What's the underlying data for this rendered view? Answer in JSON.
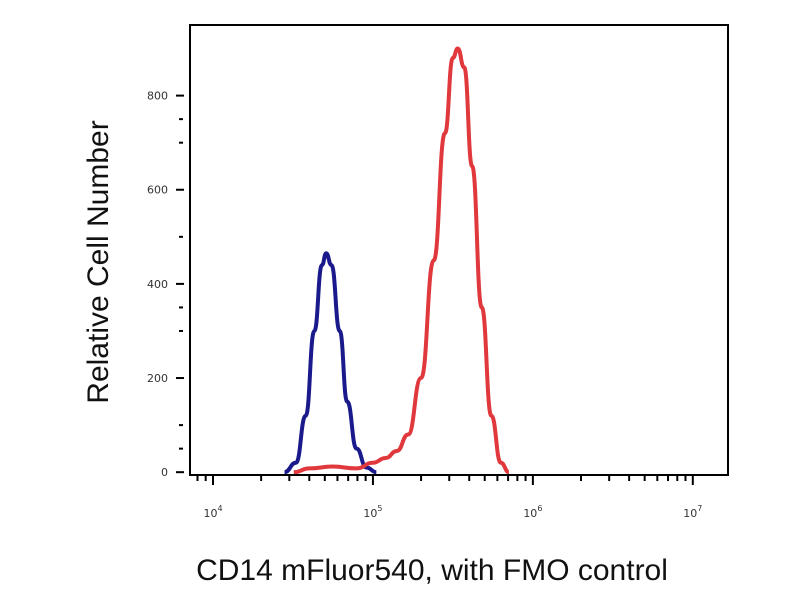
{
  "chart_data": {
    "type": "line",
    "title": "",
    "xlabel": "CD14 mFluor540, with FMO control",
    "ylabel": "Relative Cell Number",
    "x_scale": "log",
    "xlim": [
      7180,
      16600000
    ],
    "ylim": [
      -6,
      950
    ],
    "x_ticks": [
      {
        "value": 10000,
        "base": "10",
        "exp": "4"
      },
      {
        "value": 100000,
        "base": "10",
        "exp": "5"
      },
      {
        "value": 1000000,
        "base": "10",
        "exp": "6"
      },
      {
        "value": 10000000,
        "base": "10",
        "exp": "7"
      }
    ],
    "y_ticks": [
      {
        "value": 0,
        "label": "0"
      },
      {
        "value": 200,
        "label": "200"
      },
      {
        "value": 400,
        "label": "400"
      },
      {
        "value": 600,
        "label": "600"
      },
      {
        "value": 800,
        "label": "800"
      }
    ],
    "grid": false,
    "legend": "none",
    "series": [
      {
        "color": "#1a1a8c",
        "x": [
          28000,
          33000,
          38000,
          43000,
          48000,
          51000,
          55000,
          62000,
          69000,
          79000,
          91000,
          105000
        ],
        "y": [
          0,
          20,
          120,
          300,
          440,
          465,
          440,
          300,
          150,
          50,
          10,
          0
        ]
      },
      {
        "color": "#e0383c",
        "x": [
          32000,
          40000,
          56000,
          79000,
          100000,
          120000,
          141000,
          166000,
          200000,
          240000,
          282000,
          316000,
          339000,
          372000,
          417000,
          479000,
          550000,
          631000,
          708000
        ],
        "y": [
          0,
          8,
          12,
          8,
          20,
          30,
          45,
          80,
          200,
          450,
          720,
          880,
          900,
          860,
          650,
          350,
          120,
          20,
          0
        ]
      }
    ]
  }
}
